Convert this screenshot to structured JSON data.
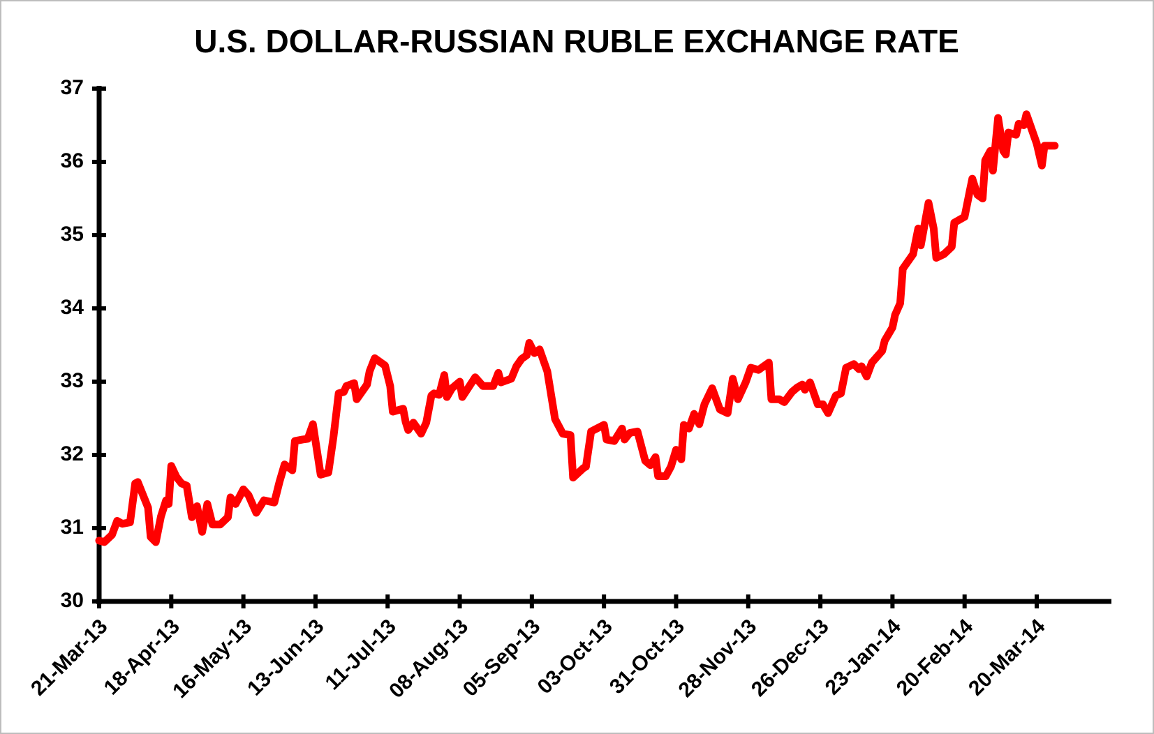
{
  "chart_data": {
    "type": "line",
    "title": "U.S. DOLLAR-RUSSIAN RUBLE EXCHANGE RATE",
    "x": [
      "2013-03-21",
      "2013-03-23",
      "2013-03-26",
      "2013-03-28",
      "2013-03-30",
      "2013-04-02",
      "2013-04-04",
      "2013-04-05",
      "2013-04-09",
      "2013-04-10",
      "2013-04-12",
      "2013-04-14",
      "2013-04-16",
      "2013-04-17",
      "2013-04-18",
      "2013-04-20",
      "2013-04-22",
      "2013-04-24",
      "2013-04-26",
      "2013-04-28",
      "2013-04-30",
      "2013-05-02",
      "2013-05-04",
      "2013-05-07",
      "2013-05-10",
      "2013-05-11",
      "2013-05-13",
      "2013-05-16",
      "2013-05-18",
      "2013-05-21",
      "2013-05-24",
      "2013-05-28",
      "2013-05-30",
      "2013-06-01",
      "2013-06-04",
      "2013-06-05",
      "2013-06-08",
      "2013-06-10",
      "2013-06-12",
      "2013-06-15",
      "2013-06-18",
      "2013-06-20",
      "2013-06-22",
      "2013-06-24",
      "2013-06-25",
      "2013-06-28",
      "2013-06-29",
      "2013-07-03",
      "2013-07-04",
      "2013-07-06",
      "2013-07-10",
      "2013-07-12",
      "2013-07-13",
      "2013-07-17",
      "2013-07-18",
      "2013-07-19",
      "2013-07-21",
      "2013-07-24",
      "2013-07-26",
      "2013-07-28",
      "2013-07-29",
      "2013-07-31",
      "2013-08-02",
      "2013-08-03",
      "2013-08-05",
      "2013-08-08",
      "2013-08-09",
      "2013-08-14",
      "2013-08-17",
      "2013-08-21",
      "2013-08-23",
      "2013-08-24",
      "2013-08-28",
      "2013-08-30",
      "2013-09-01",
      "2013-09-03",
      "2013-09-04",
      "2013-09-06",
      "2013-09-08",
      "2013-09-11",
      "2013-09-14",
      "2013-09-17",
      "2013-09-20",
      "2013-09-21",
      "2013-09-25",
      "2013-09-26",
      "2013-09-28",
      "2013-10-03",
      "2013-10-04",
      "2013-10-07",
      "2013-10-10",
      "2013-10-11",
      "2013-10-13",
      "2013-10-16",
      "2013-10-19",
      "2013-10-21",
      "2013-10-23",
      "2013-10-24",
      "2013-10-27",
      "2013-10-29",
      "2013-10-31",
      "2013-11-02",
      "2013-11-03",
      "2013-11-05",
      "2013-11-07",
      "2013-11-09",
      "2013-11-11",
      "2013-11-14",
      "2013-11-17",
      "2013-11-20",
      "2013-11-22",
      "2013-11-24",
      "2013-11-27",
      "2013-11-29",
      "2013-12-02",
      "2013-12-06",
      "2013-12-07",
      "2013-12-10",
      "2013-12-12",
      "2013-12-15",
      "2013-12-17",
      "2013-12-19",
      "2013-12-20",
      "2013-12-22",
      "2013-12-25",
      "2013-12-27",
      "2013-12-29",
      "2014-01-01",
      "2014-01-03",
      "2014-01-05",
      "2014-01-08",
      "2014-01-10",
      "2014-01-11",
      "2014-01-13",
      "2014-01-15",
      "2014-01-19",
      "2014-01-20",
      "2014-01-23",
      "2014-01-24",
      "2014-01-26",
      "2014-01-27",
      "2014-01-31",
      "2014-02-02",
      "2014-02-03",
      "2014-02-06",
      "2014-02-08",
      "2014-02-09",
      "2014-02-12",
      "2014-02-15",
      "2014-02-16",
      "2014-02-20",
      "2014-02-22",
      "2014-02-23",
      "2014-02-25",
      "2014-02-27",
      "2014-02-28",
      "2014-03-02",
      "2014-03-03",
      "2014-03-05",
      "2014-03-07",
      "2014-03-08",
      "2014-03-09",
      "2014-03-12",
      "2014-03-13",
      "2014-03-15",
      "2014-03-16",
      "2014-03-20",
      "2014-03-22",
      "2014-03-23",
      "2014-03-27"
    ],
    "values": [
      30.83,
      30.81,
      30.91,
      31.1,
      31.06,
      31.08,
      31.61,
      31.63,
      31.28,
      30.88,
      30.81,
      31.16,
      31.38,
      31.33,
      31.85,
      31.7,
      31.61,
      31.58,
      31.15,
      31.3,
      30.95,
      31.33,
      31.05,
      31.05,
      31.15,
      31.42,
      31.33,
      31.53,
      31.45,
      31.21,
      31.38,
      31.35,
      31.63,
      31.87,
      31.79,
      32.19,
      32.21,
      32.22,
      32.42,
      31.73,
      31.76,
      32.25,
      32.84,
      32.86,
      32.94,
      32.98,
      32.76,
      32.96,
      33.14,
      33.32,
      33.22,
      32.94,
      32.59,
      32.63,
      32.45,
      32.34,
      32.44,
      32.29,
      32.44,
      32.81,
      32.84,
      32.82,
      33.09,
      32.79,
      32.91,
      33.0,
      32.79,
      33.06,
      32.94,
      32.94,
      33.12,
      32.99,
      33.04,
      33.21,
      33.31,
      33.36,
      33.53,
      33.39,
      33.44,
      33.14,
      32.49,
      32.29,
      32.27,
      31.69,
      31.82,
      31.84,
      32.32,
      32.41,
      32.21,
      32.19,
      32.36,
      32.21,
      32.3,
      32.32,
      31.92,
      31.86,
      31.97,
      31.71,
      31.71,
      31.84,
      32.07,
      31.94,
      32.41,
      32.36,
      32.56,
      32.42,
      32.69,
      32.91,
      32.62,
      32.57,
      33.04,
      32.76,
      32.99,
      33.19,
      33.16,
      33.26,
      32.76,
      32.76,
      32.72,
      32.86,
      32.92,
      32.96,
      32.89,
      32.99,
      32.69,
      32.69,
      32.57,
      32.81,
      32.84,
      33.19,
      33.24,
      33.17,
      33.21,
      33.07,
      33.26,
      33.42,
      33.56,
      33.74,
      33.91,
      34.07,
      34.54,
      34.74,
      35.09,
      34.86,
      35.44,
      35.09,
      34.69,
      34.74,
      34.84,
      35.17,
      35.25,
      35.6,
      35.77,
      35.55,
      35.5,
      36.02,
      36.15,
      35.88,
      36.6,
      36.15,
      36.1,
      36.4,
      36.37,
      36.52,
      36.5,
      36.65,
      36.25,
      35.95,
      36.22,
      36.22
    ],
    "color": "#ff0000",
    "xlim": [
      "2013-03-21",
      "2014-04-18"
    ],
    "xticks": [
      {
        "value": "2013-03-21",
        "label": "21-Mar-13"
      },
      {
        "value": "2013-04-18",
        "label": "18-Apr-13"
      },
      {
        "value": "2013-05-16",
        "label": "16-May-13"
      },
      {
        "value": "2013-06-13",
        "label": "13-Jun-13"
      },
      {
        "value": "2013-07-11",
        "label": "11-Jul-13"
      },
      {
        "value": "2013-08-08",
        "label": "08-Aug-13"
      },
      {
        "value": "2013-09-05",
        "label": "05-Sep-13"
      },
      {
        "value": "2013-10-03",
        "label": "03-Oct-13"
      },
      {
        "value": "2013-10-31",
        "label": "31-Oct-13"
      },
      {
        "value": "2013-11-28",
        "label": "28-Nov-13"
      },
      {
        "value": "2013-12-26",
        "label": "26-Dec-13"
      },
      {
        "value": "2014-01-23",
        "label": "23-Jan-14"
      },
      {
        "value": "2014-02-20",
        "label": "20-Feb-14"
      },
      {
        "value": "2014-03-20",
        "label": "20-Mar-14"
      }
    ],
    "ylim": [
      30,
      37
    ],
    "yticks": [
      30,
      31,
      32,
      33,
      34,
      35,
      36,
      37
    ],
    "grid": false
  }
}
